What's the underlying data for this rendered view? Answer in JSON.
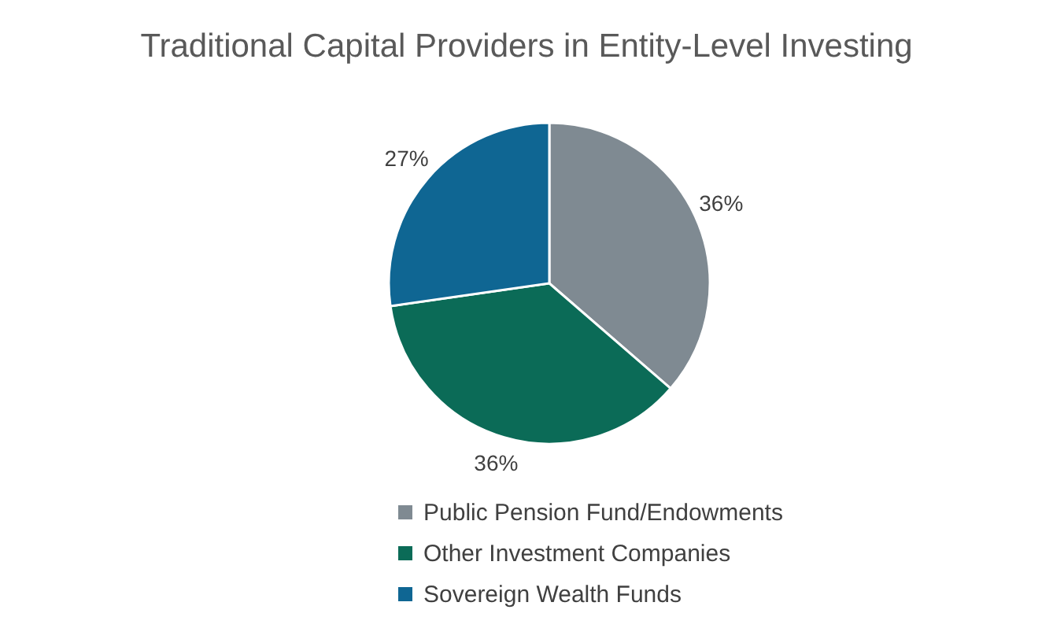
{
  "chart_data": {
    "type": "pie",
    "title": "Traditional Capital Providers in Entity-Level Investing",
    "categories": [
      "Public Pension Fund/Endowments",
      "Other Investment Companies",
      "Sovereign Wealth Funds"
    ],
    "values": [
      36,
      36,
      27
    ],
    "value_labels": [
      "36%",
      "36%",
      "27%"
    ],
    "colors": [
      "#7f8a92",
      "#0b6b57",
      "#0f6693"
    ],
    "legend": "bottom"
  }
}
